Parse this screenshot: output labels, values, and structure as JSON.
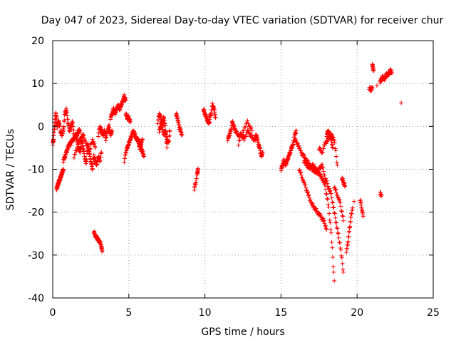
{
  "chart_data": {
    "type": "scatter",
    "title": "Day 047 of 2023, Sidereal Day-to-day VTEC variation (SDTVAR) for receiver chur",
    "xlabel": "GPS time / hours",
    "ylabel": "SDTVAR / TECUs",
    "xlim": [
      0,
      25
    ],
    "ylim": [
      -40,
      20
    ],
    "xticks": [
      0,
      5,
      10,
      15,
      20,
      25
    ],
    "yticks": [
      -40,
      -30,
      -20,
      -10,
      0,
      10,
      20
    ],
    "grid": true,
    "marker": "+",
    "series": [
      {
        "name": "SDTVAR",
        "color": "#ff0000",
        "segments": [
          {
            "x": [
              0.0,
              0.05,
              0.1,
              0.15,
              0.2,
              0.25
            ],
            "y": [
              -4,
              -3,
              -1,
              1,
              3,
              2
            ]
          },
          {
            "x": [
              0.25,
              0.3,
              0.35,
              0.4,
              0.45,
              0.5,
              0.55,
              0.6,
              0.65,
              0.7
            ],
            "y": [
              -14.5,
              -14,
              -13.5,
              -13,
              -12.5,
              -12,
              -11.5,
              -11,
              -10.5,
              -10
            ]
          },
          {
            "x": [
              0.3,
              0.35,
              0.4,
              0.45
            ],
            "y": [
              0,
              1,
              1,
              0
            ]
          },
          {
            "x": [
              0.5,
              0.6,
              0.7,
              0.8,
              0.9,
              1.0,
              1.1,
              1.2,
              1.3,
              1.4
            ],
            "y": [
              -1,
              -2,
              -1,
              3,
              4,
              1,
              -1,
              0,
              1,
              -2
            ]
          },
          {
            "x": [
              0.7,
              0.8,
              0.9,
              1.0,
              1.1,
              1.2,
              1.3,
              1.4,
              1.5,
              1.6,
              1.7,
              1.8
            ],
            "y": [
              -8,
              -7,
              -6,
              -5,
              -4,
              -4,
              -3,
              -3,
              -2,
              -2,
              -1,
              -1
            ]
          },
          {
            "x": [
              1.5,
              1.6,
              1.7,
              1.8,
              1.9,
              2.0,
              2.1,
              2.2,
              2.3,
              2.4,
              2.5,
              2.6,
              2.7,
              2.8,
              2.9,
              3.0,
              3.1,
              3.2
            ],
            "y": [
              -2,
              -3,
              -5,
              -6,
              -3,
              -5,
              -7,
              -9,
              -4,
              -6,
              -8,
              -10,
              -7,
              -8,
              -9,
              -7,
              -8,
              -6
            ]
          },
          {
            "x": [
              1.4,
              1.6,
              1.8,
              2.0,
              2.2,
              2.4,
              2.6,
              2.8
            ],
            "y": [
              -7,
              -5,
              -3,
              -2,
              -4,
              -6,
              -3,
              -5
            ]
          },
          {
            "x": [
              2.7,
              2.8,
              2.9,
              3.0,
              3.1,
              3.2,
              3.25
            ],
            "y": [
              -24.5,
              -25.5,
              -26,
              -26.5,
              -27,
              -28,
              -29
            ]
          },
          {
            "x": [
              3.0,
              3.1,
              3.2,
              3.3,
              3.4,
              3.5,
              3.6,
              3.7,
              3.8,
              3.9
            ],
            "y": [
              -2,
              0,
              -1,
              -2,
              -1,
              -3,
              -1,
              0,
              -2,
              -1
            ]
          },
          {
            "x": [
              3.8,
              3.9,
              4.0,
              4.1,
              4.2,
              4.3,
              4.4,
              4.5
            ],
            "y": [
              2,
              3,
              4,
              3,
              4,
              5,
              4,
              5
            ]
          },
          {
            "x": [
              4.5,
              4.6,
              4.7,
              4.8
            ],
            "y": [
              5,
              6,
              7,
              6
            ]
          },
          {
            "x": [
              4.7,
              4.8,
              4.9,
              5.0,
              5.1,
              5.2,
              5.3,
              5.4,
              5.5,
              5.6,
              5.7,
              5.8,
              5.9
            ],
            "y": [
              -8,
              -6,
              -5,
              -4,
              -3,
              -2,
              -1,
              -2,
              -3,
              -3,
              -5,
              -4,
              -3
            ]
          },
          {
            "x": [
              4.8,
              4.9,
              5.0,
              5.1
            ],
            "y": [
              3,
              2,
              2,
              1
            ]
          },
          {
            "x": [
              5.6,
              5.7,
              5.8,
              5.9,
              6.0
            ],
            "y": [
              -3,
              -4,
              -5,
              -6,
              -7
            ]
          },
          {
            "x": [
              6.9,
              7.0,
              7.1,
              7.2,
              7.3,
              7.4,
              7.5,
              7.6,
              7.7
            ],
            "y": [
              1,
              3,
              2,
              0,
              -2,
              -1,
              -3,
              -4,
              -1
            ]
          },
          {
            "x": [
              7.0,
              7.1,
              7.2,
              7.3,
              7.4,
              7.5
            ],
            "y": [
              -1,
              0,
              1,
              2,
              0,
              -5
            ]
          },
          {
            "x": [
              8.1,
              8.2,
              8.3,
              8.4,
              8.5
            ],
            "y": [
              3,
              2,
              0,
              -1,
              -2
            ]
          },
          {
            "x": [
              9.3,
              9.4,
              9.5,
              9.55
            ],
            "y": [
              -14.5,
              -13,
              -11,
              -10
            ]
          },
          {
            "x": [
              9.9,
              10.0,
              10.1,
              10.2,
              10.3
            ],
            "y": [
              4,
              3,
              2,
              1,
              1
            ]
          },
          {
            "x": [
              10.3,
              10.4,
              10.5,
              10.6,
              10.7
            ],
            "y": [
              2,
              3,
              5,
              4,
              2
            ]
          },
          {
            "x": [
              11.5,
              11.6,
              11.7,
              11.8,
              11.9,
              12.0
            ],
            "y": [
              -3,
              -2,
              -1,
              1,
              0,
              -1
            ]
          },
          {
            "x": [
              12.0,
              12.2,
              12.4,
              12.6,
              12.8,
              13.0,
              13.2,
              13.4
            ],
            "y": [
              -1,
              -2,
              -2,
              -3,
              -1,
              -2,
              -3,
              -2
            ]
          },
          {
            "x": [
              12.2,
              12.5,
              12.8,
              13.1
            ],
            "y": [
              -4,
              -1,
              1,
              -1
            ]
          },
          {
            "x": [
              13.3,
              13.4,
              13.5,
              13.6,
              13.7,
              13.8
            ],
            "y": [
              -3,
              -2,
              -4,
              -5,
              -7,
              -6
            ]
          },
          {
            "x": [
              15.0,
              15.1,
              15.2,
              15.3,
              15.4,
              15.5,
              15.6,
              15.7,
              15.8,
              15.9,
              16.0
            ],
            "y": [
              -10,
              -9,
              -8,
              -9,
              -8,
              -7,
              -6,
              -5,
              -4,
              -2,
              -1
            ]
          },
          {
            "x": [
              15.9,
              16.1,
              16.3,
              16.5,
              16.7,
              16.9,
              17.1,
              17.3,
              17.5,
              17.7,
              17.9,
              18.1,
              18.3,
              18.5,
              18.7,
              18.9,
              19.1
            ],
            "y": [
              -3,
              -4,
              -6,
              -7,
              -8,
              -9,
              -10,
              -11,
              -10,
              -9,
              -12,
              -14,
              -16,
              -20,
              -24,
              -28,
              -34
            ]
          },
          {
            "x": [
              16.2,
              16.4,
              16.6,
              16.8,
              17.0,
              17.2,
              17.4,
              17.6,
              17.8,
              18.0
            ],
            "y": [
              -10,
              -12,
              -14,
              -16,
              -18,
              -19,
              -20,
              -21,
              -22,
              -24
            ]
          },
          {
            "x": [
              16.5,
              16.7,
              16.9,
              17.1,
              17.3,
              17.5,
              17.7,
              17.9,
              18.1,
              18.3,
              18.5
            ],
            "y": [
              -8,
              -9,
              -10,
              -9,
              -10,
              -11,
              -12,
              -14,
              -18,
              -25,
              -36
            ]
          },
          {
            "x": [
              17.5,
              17.7,
              17.9,
              18.1,
              18.3,
              18.5,
              18.7
            ],
            "y": [
              -5,
              -6,
              -4,
              -3,
              -2,
              -3,
              -9
            ]
          },
          {
            "x": [
              18.0,
              18.1,
              18.2,
              18.3,
              18.4
            ],
            "y": [
              -2,
              -1,
              -2,
              -3,
              -5
            ]
          },
          {
            "x": [
              18.5,
              18.7,
              18.9,
              19.1
            ],
            "y": [
              -14,
              -16,
              -18,
              -22
            ]
          },
          {
            "x": [
              19.0,
              19.1,
              19.2
            ],
            "y": [
              -12,
              -13,
              -14
            ]
          },
          {
            "x": [
              19.3,
              19.4,
              19.5,
              19.6,
              19.7
            ],
            "y": [
              -29,
              -27,
              -24,
              -21,
              -19
            ]
          },
          {
            "x": [
              19.8
            ],
            "y": [
              -17.5
            ]
          },
          {
            "x": [
              20.2,
              20.3,
              20.4
            ],
            "y": [
              -17,
              -19,
              -21
            ]
          },
          {
            "x": [
              20.8,
              20.9,
              21.0
            ],
            "y": [
              9,
              8.5,
              9
            ]
          },
          {
            "x": [
              21.0,
              21.05,
              21.1
            ],
            "y": [
              14.5,
              13.5,
              13
            ]
          },
          {
            "x": [
              21.3
            ],
            "y": [
              9.5
            ]
          },
          {
            "x": [
              21.5,
              21.6
            ],
            "y": [
              -15.5,
              -16
            ]
          },
          {
            "x": [
              21.5,
              21.6,
              21.7,
              21.8,
              21.9,
              22.0,
              22.1,
              22.2,
              22.3
            ],
            "y": [
              10.5,
              11,
              11.5,
              11,
              12,
              12,
              12.5,
              13,
              12.5
            ]
          },
          {
            "x": [
              22.9
            ],
            "y": [
              5.5
            ]
          }
        ]
      }
    ]
  }
}
